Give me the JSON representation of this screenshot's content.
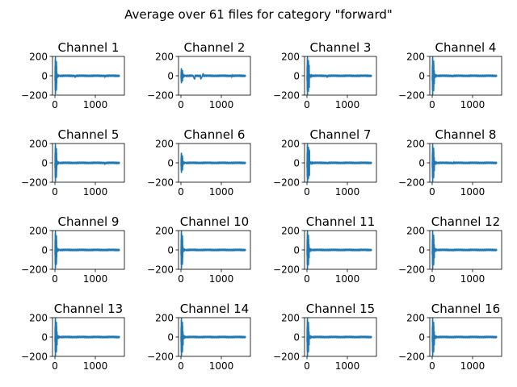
{
  "figure": {
    "title": "Average over 61 files for category \"forward\"",
    "line_color": "#1f77b4"
  },
  "chart_data": [
    {
      "type": "line",
      "title": "Channel 1",
      "xlim": [
        -60,
        1720
      ],
      "ylim": [
        -200,
        200
      ],
      "xticks": [
        0,
        1000
      ],
      "xtick_labels": [
        "0",
        "1000"
      ],
      "yticks": [
        -200,
        0,
        200
      ],
      "ytick_labels": [
        "−200",
        "0",
        "200"
      ],
      "series": [
        {
          "samples": 1600,
          "peak_end": 50,
          "peak_amp": 220,
          "bursts": [
            [
              500,
              12,
              10
            ],
            [
              1240,
              8,
              6
            ]
          ]
        }
      ]
    },
    {
      "type": "line",
      "title": "Channel 2",
      "xlim": [
        -60,
        1720
      ],
      "ylim": [
        -200,
        200
      ],
      "xticks": [
        0,
        1000
      ],
      "xtick_labels": [
        "0",
        "1000"
      ],
      "yticks": [
        -200,
        0,
        200
      ],
      "ytick_labels": [
        "−200",
        "0",
        "200"
      ],
      "series": [
        {
          "samples": 1600,
          "peak_end": 45,
          "peak_amp": 90,
          "bursts": [
            [
              320,
              25,
              30
            ],
            [
              520,
              35,
              28
            ],
            [
              1260,
              6,
              5
            ]
          ]
        }
      ]
    },
    {
      "type": "line",
      "title": "Channel 3",
      "xlim": [
        -60,
        1720
      ],
      "ylim": [
        -200,
        200
      ],
      "xticks": [
        0,
        1000
      ],
      "xtick_labels": [
        "0",
        "1000"
      ],
      "yticks": [
        -200,
        0,
        200
      ],
      "ytick_labels": [
        "−200",
        "0",
        "200"
      ],
      "series": [
        {
          "samples": 1600,
          "peak_end": 60,
          "peak_amp": 220,
          "bursts": [
            [
              500,
              10,
              8
            ],
            [
              1240,
              6,
              5
            ]
          ]
        }
      ]
    },
    {
      "type": "line",
      "title": "Channel 4",
      "xlim": [
        -60,
        1720
      ],
      "ylim": [
        -200,
        200
      ],
      "xticks": [
        0,
        1000
      ],
      "xtick_labels": [
        "0",
        "1000"
      ],
      "yticks": [
        -200,
        0,
        200
      ],
      "ytick_labels": [
        "−200",
        "0",
        "200"
      ],
      "series": [
        {
          "samples": 1600,
          "peak_end": 55,
          "peak_amp": 220,
          "bursts": [
            [
              500,
              8,
              8
            ],
            [
              1240,
              6,
              5
            ]
          ]
        }
      ]
    },
    {
      "type": "line",
      "title": "Channel 5",
      "xlim": [
        -60,
        1720
      ],
      "ylim": [
        -200,
        200
      ],
      "xticks": [
        0,
        1000
      ],
      "xtick_labels": [
        "0",
        "1000"
      ],
      "yticks": [
        -200,
        0,
        200
      ],
      "ytick_labels": [
        "−200",
        "0",
        "200"
      ],
      "series": [
        {
          "samples": 1600,
          "peak_end": 50,
          "peak_amp": 220,
          "bursts": [
            [
              1240,
              8,
              6
            ]
          ]
        }
      ]
    },
    {
      "type": "line",
      "title": "Channel 6",
      "xlim": [
        -60,
        1720
      ],
      "ylim": [
        -200,
        200
      ],
      "xticks": [
        0,
        1000
      ],
      "xtick_labels": [
        "0",
        "1000"
      ],
      "yticks": [
        -200,
        0,
        200
      ],
      "ytick_labels": [
        "−200",
        "0",
        "200"
      ],
      "series": [
        {
          "samples": 1600,
          "peak_end": 45,
          "peak_amp": 120,
          "bursts": [
            [
              1240,
              5,
              4
            ]
          ]
        }
      ]
    },
    {
      "type": "line",
      "title": "Channel 7",
      "xlim": [
        -60,
        1720
      ],
      "ylim": [
        -200,
        200
      ],
      "xticks": [
        0,
        1000
      ],
      "xtick_labels": [
        "0",
        "1000"
      ],
      "yticks": [
        -200,
        0,
        200
      ],
      "ytick_labels": [
        "−200",
        "0",
        "200"
      ],
      "series": [
        {
          "samples": 1600,
          "peak_end": 65,
          "peak_amp": 220,
          "bursts": [
            [
              500,
              8,
              6
            ]
          ]
        }
      ]
    },
    {
      "type": "line",
      "title": "Channel 8",
      "xlim": [
        -60,
        1720
      ],
      "ylim": [
        -200,
        200
      ],
      "xticks": [
        0,
        1000
      ],
      "xtick_labels": [
        "0",
        "1000"
      ],
      "yticks": [
        -200,
        0,
        200
      ],
      "ytick_labels": [
        "−200",
        "0",
        "200"
      ],
      "series": [
        {
          "samples": 1600,
          "peak_end": 55,
          "peak_amp": 220,
          "bursts": [
            [
              300,
              14,
              14
            ],
            [
              520,
              14,
              10
            ]
          ]
        }
      ]
    },
    {
      "type": "line",
      "title": "Channel 9",
      "xlim": [
        -60,
        1720
      ],
      "ylim": [
        -200,
        200
      ],
      "xticks": [
        0,
        1000
      ],
      "xtick_labels": [
        "0",
        "1000"
      ],
      "yticks": [
        -200,
        0,
        200
      ],
      "ytick_labels": [
        "−200",
        "0",
        "200"
      ],
      "series": [
        {
          "samples": 1600,
          "peak_end": 50,
          "peak_amp": 220,
          "bursts": []
        }
      ]
    },
    {
      "type": "line",
      "title": "Channel 10",
      "xlim": [
        -60,
        1720
      ],
      "ylim": [
        -200,
        200
      ],
      "xticks": [
        0,
        1000
      ],
      "xtick_labels": [
        "0",
        "1000"
      ],
      "yticks": [
        -200,
        0,
        200
      ],
      "ytick_labels": [
        "−200",
        "0",
        "200"
      ],
      "series": [
        {
          "samples": 1600,
          "peak_end": 50,
          "peak_amp": 220,
          "bursts": []
        }
      ]
    },
    {
      "type": "line",
      "title": "Channel 11",
      "xlim": [
        -60,
        1720
      ],
      "ylim": [
        -200,
        200
      ],
      "xticks": [
        0,
        1000
      ],
      "xtick_labels": [
        "0",
        "1000"
      ],
      "yticks": [
        -200,
        0,
        200
      ],
      "ytick_labels": [
        "−200",
        "0",
        "200"
      ],
      "series": [
        {
          "samples": 1600,
          "peak_end": 55,
          "peak_amp": 220,
          "bursts": []
        }
      ]
    },
    {
      "type": "line",
      "title": "Channel 12",
      "xlim": [
        -60,
        1720
      ],
      "ylim": [
        -200,
        200
      ],
      "xticks": [
        0,
        1000
      ],
      "xtick_labels": [
        "0",
        "1000"
      ],
      "yticks": [
        -200,
        0,
        200
      ],
      "ytick_labels": [
        "−200",
        "0",
        "200"
      ],
      "series": [
        {
          "samples": 1600,
          "peak_end": 55,
          "peak_amp": 220,
          "bursts": [
            [
              520,
              8,
              6
            ]
          ]
        }
      ]
    },
    {
      "type": "line",
      "title": "Channel 13",
      "xlim": [
        -60,
        1720
      ],
      "ylim": [
        -200,
        200
      ],
      "xticks": [
        0,
        1000
      ],
      "xtick_labels": [
        "0",
        "1000"
      ],
      "yticks": [
        -200,
        0,
        200
      ],
      "ytick_labels": [
        "−200",
        "0",
        "200"
      ],
      "series": [
        {
          "samples": 1600,
          "peak_end": 55,
          "peak_amp": 220,
          "bursts": []
        }
      ]
    },
    {
      "type": "line",
      "title": "Channel 14",
      "xlim": [
        -60,
        1720
      ],
      "ylim": [
        -200,
        200
      ],
      "xticks": [
        0,
        1000
      ],
      "xtick_labels": [
        "0",
        "1000"
      ],
      "yticks": [
        -200,
        0,
        200
      ],
      "ytick_labels": [
        "−200",
        "0",
        "200"
      ],
      "series": [
        {
          "samples": 1600,
          "peak_end": 55,
          "peak_amp": 220,
          "bursts": []
        }
      ]
    },
    {
      "type": "line",
      "title": "Channel 15",
      "xlim": [
        -60,
        1720
      ],
      "ylim": [
        -200,
        200
      ],
      "xticks": [
        0,
        1000
      ],
      "xtick_labels": [
        "0",
        "1000"
      ],
      "yticks": [
        -200,
        0,
        200
      ],
      "ytick_labels": [
        "−200",
        "0",
        "200"
      ],
      "series": [
        {
          "samples": 1600,
          "peak_end": 55,
          "peak_amp": 220,
          "bursts": []
        }
      ]
    },
    {
      "type": "line",
      "title": "Channel 16",
      "xlim": [
        -60,
        1720
      ],
      "ylim": [
        -200,
        200
      ],
      "xticks": [
        0,
        1000
      ],
      "xtick_labels": [
        "0",
        "1000"
      ],
      "yticks": [
        -200,
        0,
        200
      ],
      "ytick_labels": [
        "−200",
        "0",
        "200"
      ],
      "series": [
        {
          "samples": 1600,
          "peak_end": 55,
          "peak_amp": 220,
          "bursts": []
        }
      ]
    }
  ]
}
